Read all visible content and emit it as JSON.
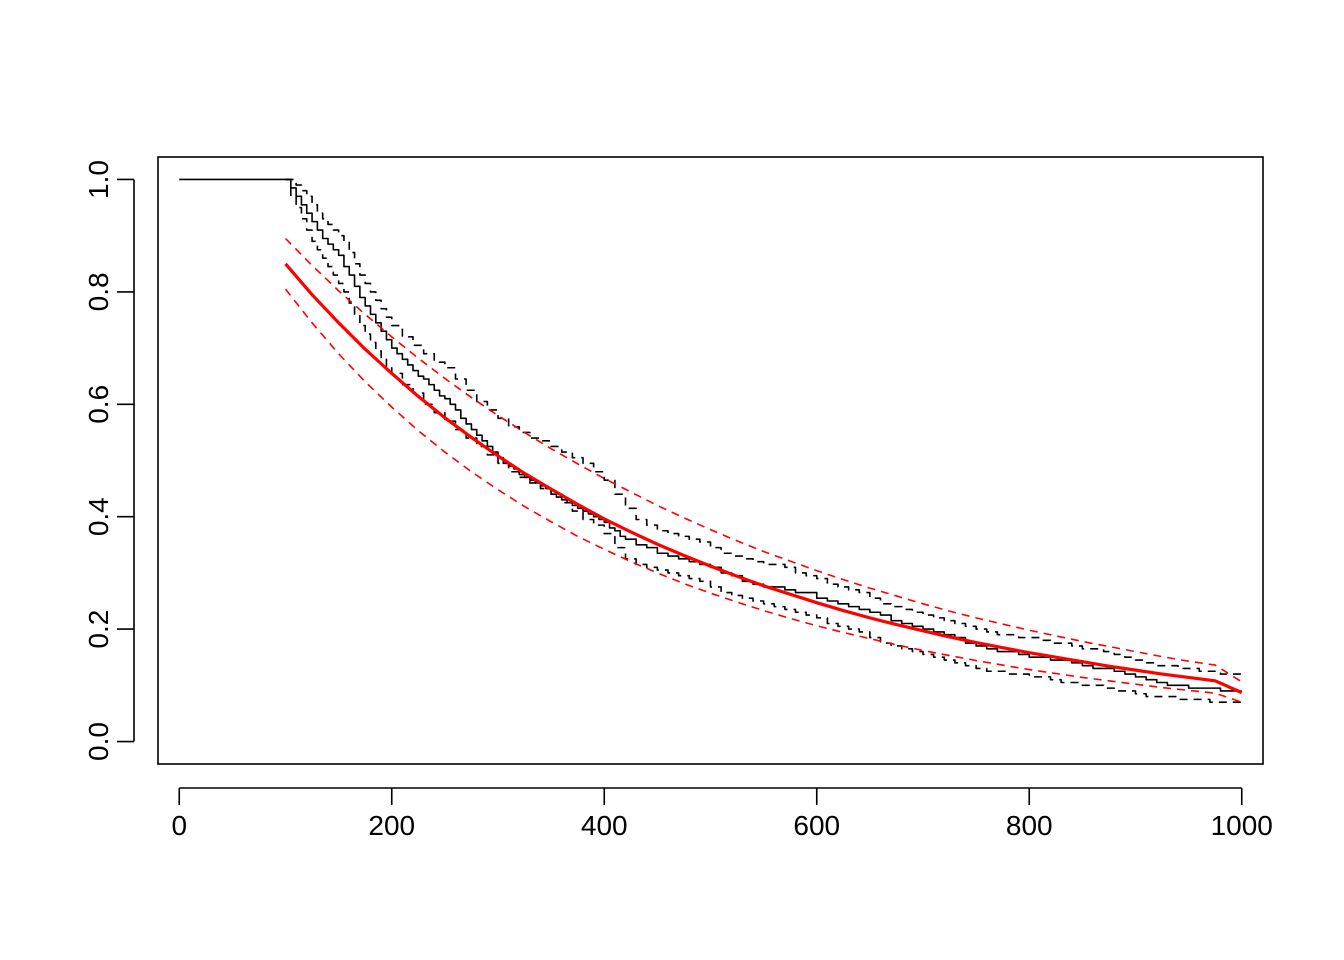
{
  "chart_data": {
    "type": "line",
    "title": "",
    "xlabel": "",
    "ylabel": "",
    "xlim": [
      -20,
      1020
    ],
    "ylim": [
      -0.04,
      1.04
    ],
    "x_ticks": [
      0,
      200,
      400,
      600,
      800,
      1000
    ],
    "x_tick_labels": [
      "0",
      "200",
      "400",
      "600",
      "800",
      "1000"
    ],
    "y_ticks": [
      0.0,
      0.2,
      0.4,
      0.6,
      0.8,
      1.0
    ],
    "y_tick_labels": [
      "0.0",
      "0.2",
      "0.4",
      "0.6",
      "0.8",
      "1.0"
    ],
    "grid": false,
    "legend": "none",
    "series": [
      {
        "kind": "step",
        "color": "#000000",
        "dash": "solid",
        "width": 1.6,
        "x": [
          0,
          100,
          105,
          110,
          115,
          120,
          125,
          130,
          135,
          140,
          145,
          150,
          155,
          160,
          165,
          170,
          175,
          180,
          185,
          190,
          195,
          200,
          205,
          210,
          215,
          220,
          225,
          230,
          235,
          240,
          245,
          250,
          255,
          260,
          265,
          270,
          275,
          280,
          285,
          290,
          295,
          300,
          305,
          310,
          315,
          320,
          325,
          330,
          335,
          340,
          345,
          350,
          355,
          360,
          365,
          370,
          375,
          380,
          385,
          390,
          395,
          400,
          405,
          410,
          415,
          420,
          430,
          440,
          450,
          460,
          470,
          480,
          490,
          500,
          510,
          520,
          530,
          540,
          550,
          560,
          570,
          580,
          590,
          600,
          610,
          620,
          630,
          640,
          650,
          660,
          670,
          680,
          690,
          700,
          710,
          720,
          730,
          740,
          750,
          760,
          770,
          780,
          790,
          800,
          810,
          820,
          830,
          840,
          850,
          860,
          870,
          880,
          890,
          900,
          910,
          920,
          930,
          940,
          950,
          960,
          970,
          980,
          990,
          1000
        ],
        "y": [
          1.0,
          1.0,
          0.985,
          0.97,
          0.955,
          0.94,
          0.925,
          0.91,
          0.895,
          0.885,
          0.875,
          0.865,
          0.845,
          0.83,
          0.81,
          0.79,
          0.775,
          0.76,
          0.745,
          0.73,
          0.715,
          0.7,
          0.69,
          0.68,
          0.67,
          0.66,
          0.65,
          0.645,
          0.635,
          0.625,
          0.615,
          0.61,
          0.6,
          0.59,
          0.575,
          0.565,
          0.555,
          0.545,
          0.535,
          0.525,
          0.515,
          0.505,
          0.495,
          0.49,
          0.485,
          0.475,
          0.47,
          0.465,
          0.46,
          0.455,
          0.45,
          0.44,
          0.435,
          0.43,
          0.425,
          0.42,
          0.415,
          0.41,
          0.405,
          0.4,
          0.395,
          0.39,
          0.38,
          0.375,
          0.365,
          0.36,
          0.35,
          0.345,
          0.335,
          0.33,
          0.325,
          0.32,
          0.315,
          0.31,
          0.3,
          0.295,
          0.285,
          0.28,
          0.275,
          0.275,
          0.27,
          0.265,
          0.265,
          0.255,
          0.25,
          0.245,
          0.24,
          0.235,
          0.23,
          0.225,
          0.215,
          0.21,
          0.205,
          0.2,
          0.195,
          0.19,
          0.185,
          0.175,
          0.17,
          0.165,
          0.16,
          0.16,
          0.155,
          0.15,
          0.15,
          0.145,
          0.145,
          0.14,
          0.135,
          0.13,
          0.13,
          0.125,
          0.12,
          0.115,
          0.11,
          0.105,
          0.1,
          0.1,
          0.095,
          0.095,
          0.095,
          0.09,
          0.09,
          0.09
        ]
      },
      {
        "kind": "step",
        "color": "#000000",
        "dash": "dashed",
        "width": 1.6,
        "x": [
          100,
          105,
          110,
          115,
          120,
          125,
          130,
          135,
          140,
          145,
          150,
          155,
          160,
          165,
          170,
          175,
          180,
          185,
          190,
          195,
          200,
          210,
          220,
          230,
          240,
          250,
          260,
          270,
          280,
          290,
          300,
          310,
          320,
          330,
          340,
          350,
          360,
          370,
          380,
          390,
          400,
          410,
          420,
          430,
          440,
          450,
          460,
          470,
          480,
          490,
          500,
          510,
          520,
          530,
          540,
          550,
          560,
          570,
          580,
          590,
          600,
          610,
          620,
          630,
          640,
          650,
          660,
          670,
          680,
          690,
          700,
          710,
          720,
          730,
          740,
          750,
          760,
          770,
          780,
          790,
          800,
          810,
          820,
          830,
          840,
          850,
          860,
          870,
          880,
          890,
          900,
          910,
          920,
          930,
          940,
          950,
          960,
          970,
          980,
          990,
          1000
        ],
        "y": [
          1.0,
          1.0,
          0.99,
          0.98,
          0.97,
          0.955,
          0.94,
          0.93,
          0.92,
          0.91,
          0.9,
          0.89,
          0.87,
          0.85,
          0.83,
          0.815,
          0.8,
          0.785,
          0.77,
          0.755,
          0.74,
          0.72,
          0.705,
          0.69,
          0.675,
          0.665,
          0.645,
          0.625,
          0.605,
          0.59,
          0.575,
          0.56,
          0.55,
          0.54,
          0.535,
          0.525,
          0.515,
          0.505,
          0.495,
          0.48,
          0.465,
          0.44,
          0.415,
          0.395,
          0.385,
          0.375,
          0.37,
          0.365,
          0.36,
          0.355,
          0.345,
          0.335,
          0.33,
          0.325,
          0.32,
          0.315,
          0.315,
          0.31,
          0.3,
          0.295,
          0.29,
          0.28,
          0.275,
          0.27,
          0.265,
          0.255,
          0.245,
          0.24,
          0.235,
          0.23,
          0.225,
          0.22,
          0.215,
          0.21,
          0.205,
          0.2,
          0.195,
          0.19,
          0.19,
          0.185,
          0.185,
          0.18,
          0.175,
          0.175,
          0.17,
          0.165,
          0.165,
          0.16,
          0.155,
          0.15,
          0.145,
          0.14,
          0.135,
          0.135,
          0.13,
          0.13,
          0.125,
          0.125,
          0.12,
          0.12,
          0.12
        ]
      },
      {
        "kind": "step",
        "color": "#000000",
        "dash": "dashed",
        "width": 1.6,
        "x": [
          100,
          105,
          110,
          115,
          120,
          125,
          130,
          135,
          140,
          145,
          150,
          155,
          160,
          165,
          170,
          175,
          180,
          185,
          190,
          195,
          200,
          210,
          220,
          230,
          240,
          250,
          260,
          270,
          280,
          290,
          300,
          310,
          320,
          330,
          340,
          350,
          360,
          370,
          380,
          390,
          400,
          410,
          420,
          430,
          440,
          450,
          460,
          470,
          480,
          490,
          500,
          510,
          520,
          530,
          540,
          550,
          560,
          570,
          580,
          590,
          600,
          610,
          620,
          630,
          640,
          650,
          660,
          670,
          680,
          690,
          700,
          710,
          720,
          730,
          740,
          750,
          760,
          770,
          780,
          790,
          800,
          810,
          820,
          830,
          840,
          850,
          860,
          870,
          880,
          890,
          900,
          910,
          920,
          930,
          940,
          950,
          960,
          970,
          980,
          990,
          1000
        ],
        "y": [
          1.0,
          0.97,
          0.95,
          0.93,
          0.91,
          0.89,
          0.875,
          0.86,
          0.845,
          0.83,
          0.815,
          0.8,
          0.78,
          0.76,
          0.74,
          0.725,
          0.71,
          0.695,
          0.68,
          0.665,
          0.655,
          0.635,
          0.62,
          0.6,
          0.585,
          0.57,
          0.555,
          0.54,
          0.525,
          0.51,
          0.495,
          0.48,
          0.47,
          0.46,
          0.45,
          0.44,
          0.425,
          0.41,
          0.395,
          0.385,
          0.37,
          0.345,
          0.325,
          0.315,
          0.31,
          0.305,
          0.3,
          0.295,
          0.29,
          0.285,
          0.275,
          0.265,
          0.26,
          0.255,
          0.25,
          0.245,
          0.24,
          0.235,
          0.23,
          0.225,
          0.22,
          0.21,
          0.205,
          0.2,
          0.195,
          0.185,
          0.175,
          0.17,
          0.165,
          0.16,
          0.155,
          0.15,
          0.145,
          0.14,
          0.135,
          0.13,
          0.125,
          0.125,
          0.12,
          0.12,
          0.115,
          0.115,
          0.11,
          0.105,
          0.105,
          0.1,
          0.1,
          0.095,
          0.09,
          0.09,
          0.085,
          0.08,
          0.08,
          0.08,
          0.075,
          0.075,
          0.075,
          0.07,
          0.07,
          0.07,
          0.07
        ]
      },
      {
        "kind": "curve",
        "color": "#ff0000",
        "dash": "solid",
        "width": 3.2,
        "x": [
          100,
          125,
          150,
          175,
          200,
          225,
          250,
          275,
          300,
          325,
          350,
          375,
          400,
          425,
          450,
          475,
          500,
          525,
          550,
          575,
          600,
          625,
          650,
          675,
          700,
          725,
          750,
          775,
          800,
          825,
          850,
          875,
          900,
          925,
          950,
          975,
          1000
        ],
        "y": [
          0.85,
          0.795,
          0.745,
          0.698,
          0.655,
          0.614,
          0.576,
          0.541,
          0.508,
          0.477,
          0.449,
          0.422,
          0.396,
          0.373,
          0.351,
          0.331,
          0.312,
          0.294,
          0.277,
          0.262,
          0.247,
          0.233,
          0.22,
          0.208,
          0.197,
          0.186,
          0.176,
          0.167,
          0.158,
          0.15,
          0.142,
          0.134,
          0.127,
          0.12,
          0.114,
          0.108,
          0.087
        ]
      },
      {
        "kind": "curve",
        "color": "#ff0000",
        "dash": "dashed",
        "width": 1.6,
        "x": [
          100,
          125,
          150,
          175,
          200,
          225,
          250,
          275,
          300,
          325,
          350,
          375,
          400,
          425,
          450,
          475,
          500,
          525,
          550,
          575,
          600,
          625,
          650,
          675,
          700,
          725,
          750,
          775,
          800,
          825,
          850,
          875,
          900,
          925,
          950,
          975,
          1000
        ],
        "y": [
          0.895,
          0.847,
          0.802,
          0.76,
          0.72,
          0.682,
          0.646,
          0.612,
          0.58,
          0.55,
          0.521,
          0.494,
          0.468,
          0.444,
          0.42,
          0.398,
          0.377,
          0.357,
          0.338,
          0.321,
          0.304,
          0.288,
          0.273,
          0.259,
          0.245,
          0.232,
          0.22,
          0.209,
          0.198,
          0.188,
          0.178,
          0.169,
          0.16,
          0.151,
          0.143,
          0.136,
          0.106
        ]
      },
      {
        "kind": "curve",
        "color": "#ff0000",
        "dash": "dashed",
        "width": 1.6,
        "x": [
          100,
          125,
          150,
          175,
          200,
          225,
          250,
          275,
          300,
          325,
          350,
          375,
          400,
          425,
          450,
          475,
          500,
          525,
          550,
          575,
          600,
          625,
          650,
          675,
          700,
          725,
          750,
          775,
          800,
          825,
          850,
          875,
          900,
          925,
          950,
          975,
          1000
        ],
        "y": [
          0.805,
          0.745,
          0.69,
          0.64,
          0.595,
          0.553,
          0.515,
          0.48,
          0.448,
          0.418,
          0.391,
          0.365,
          0.342,
          0.32,
          0.3,
          0.281,
          0.264,
          0.248,
          0.233,
          0.219,
          0.206,
          0.194,
          0.183,
          0.172,
          0.162,
          0.153,
          0.144,
          0.136,
          0.128,
          0.121,
          0.114,
          0.108,
          0.102,
          0.096,
          0.091,
          0.086,
          0.07
        ]
      }
    ]
  }
}
